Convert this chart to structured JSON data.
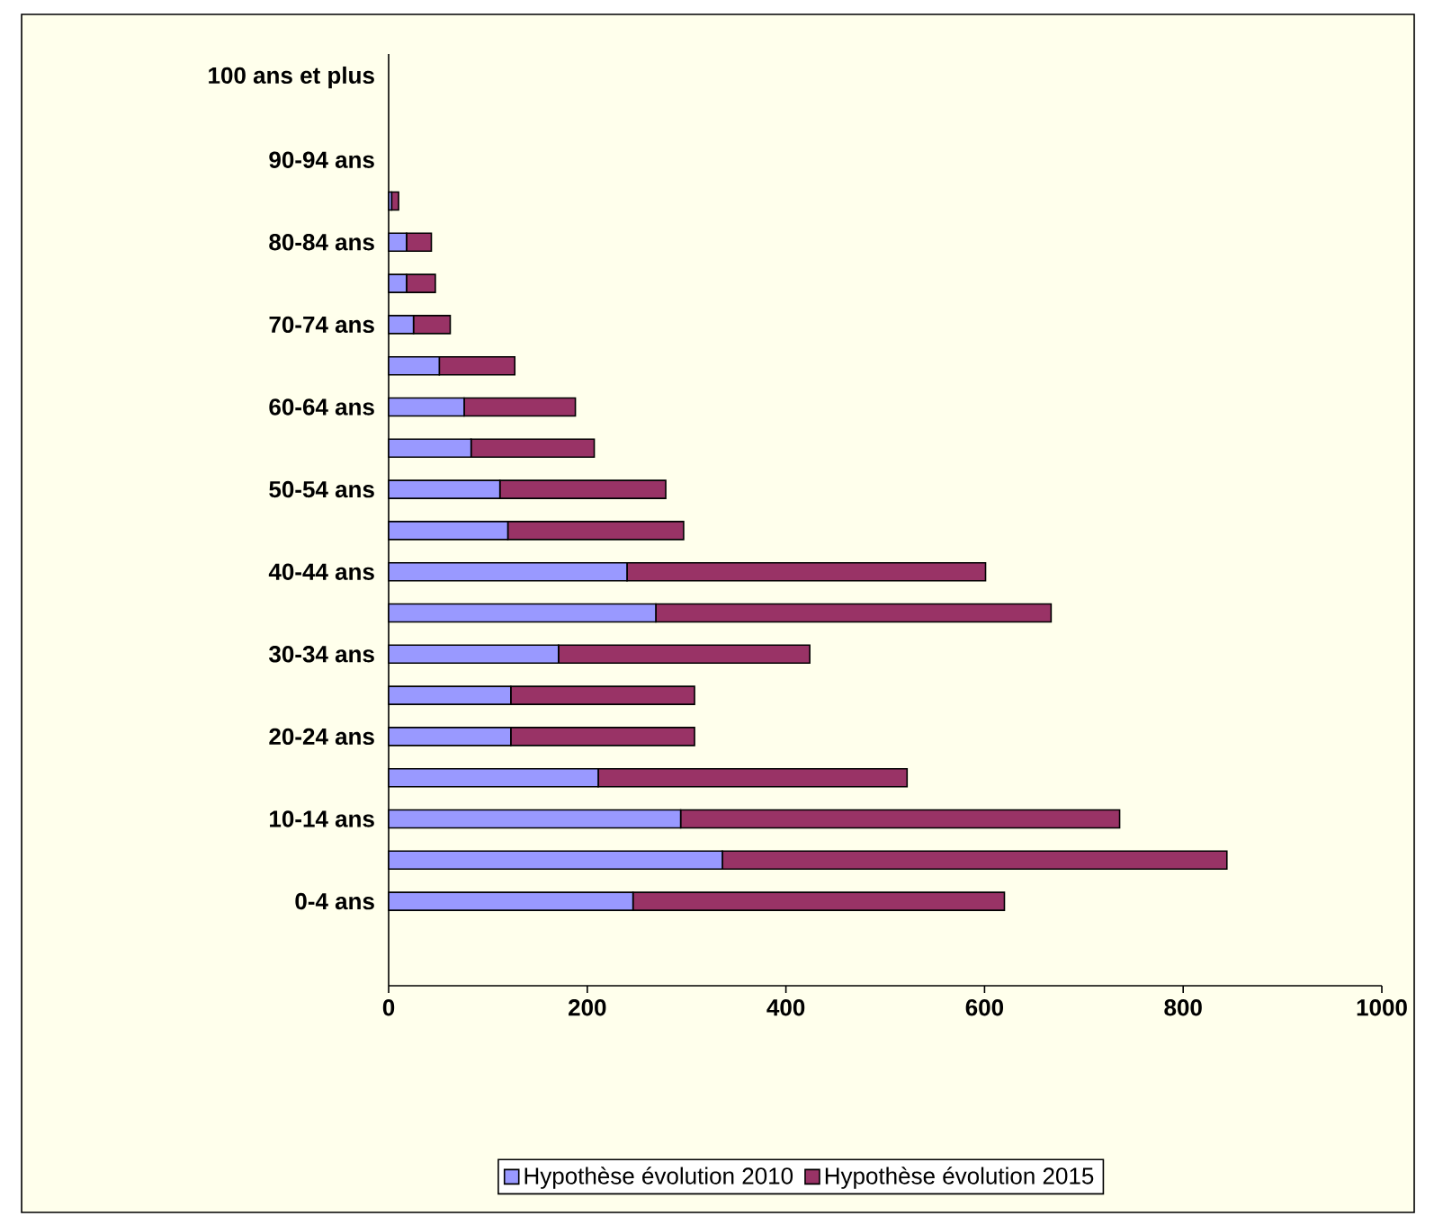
{
  "chart_data": {
    "type": "bar",
    "orientation": "horizontal",
    "stacked": true,
    "categories": [
      "100 ans et plus",
      null,
      "90-94 ans",
      null,
      "80-84 ans",
      null,
      "70-74 ans",
      null,
      "60-64 ans",
      null,
      "50-54 ans",
      null,
      "40-44 ans",
      null,
      "30-34 ans",
      null,
      "20-24 ans",
      null,
      "10-14 ans",
      null,
      "0-4 ans"
    ],
    "series": [
      {
        "name": "Hypothèse évolution 2010",
        "color": "#9999ff",
        "values": [
          null,
          null,
          null,
          3,
          18,
          18,
          25,
          51,
          76,
          83,
          112,
          120,
          240,
          269,
          171,
          123,
          123,
          211,
          294,
          336,
          246
        ]
      },
      {
        "name": "Hypothèse évolution 2015",
        "color": "#993366",
        "values": [
          null,
          null,
          null,
          7,
          25,
          29,
          37,
          76,
          112,
          124,
          167,
          177,
          361,
          398,
          253,
          185,
          185,
          311,
          442,
          508,
          374
        ]
      }
    ],
    "xlim": [
      0,
      1000
    ],
    "xticks": [
      0,
      200,
      400,
      600,
      800,
      1000
    ],
    "grid": false,
    "legend": "bottom"
  }
}
